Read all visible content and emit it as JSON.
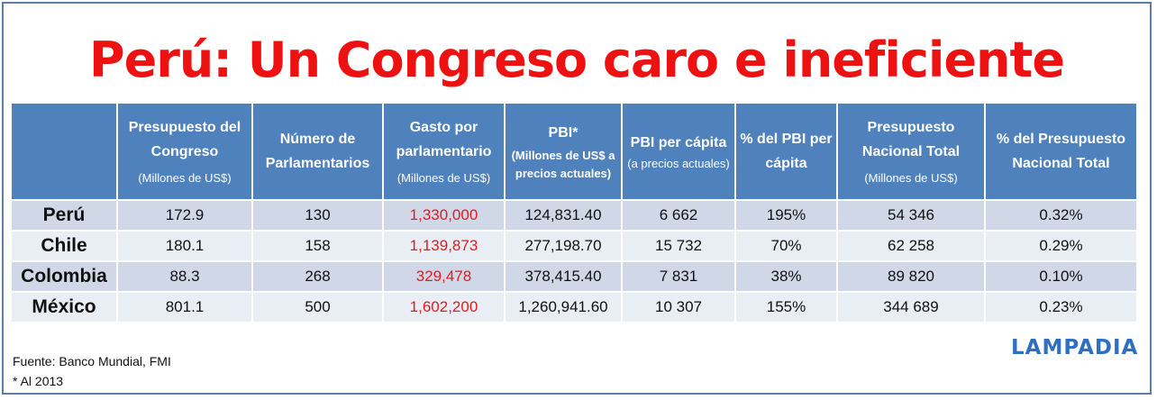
{
  "title": "Perú: Un Congreso caro e ineficiente",
  "table": {
    "headers": [
      {
        "main": "",
        "sub": ""
      },
      {
        "main": "Presupuesto del Congreso",
        "sub": "(Millones de US$)"
      },
      {
        "main": "Número de Parlamentarios",
        "sub": ""
      },
      {
        "main": "Gasto por parlamentario",
        "sub": "(Millones de US$)"
      },
      {
        "main": "PBI*",
        "sub": "(Millones de US$ a precios actuales)"
      },
      {
        "main": "PBI per cápita",
        "sub": "(a precios actuales)"
      },
      {
        "main": "% del PBI per cápita",
        "sub": ""
      },
      {
        "main": "Presupuesto Nacional Total",
        "sub": "(Millones de US$)"
      },
      {
        "main": "% del Presupuesto Nacional Total",
        "sub": ""
      }
    ],
    "rows": [
      {
        "country": "Perú",
        "presupuesto": "172.9",
        "numero": "130",
        "gasto": "1,330,000",
        "pbi": "124,831.40",
        "pbi_pc": "6 662",
        "pct_pbi": "195%",
        "pres_nacional": "54 346",
        "pct_pres": "0.32%"
      },
      {
        "country": "Chile",
        "presupuesto": "180.1",
        "numero": "158",
        "gasto": "1,139,873",
        "pbi": "277,198.70",
        "pbi_pc": "15 732",
        "pct_pbi": "70%",
        "pres_nacional": "62 258",
        "pct_pres": "0.29%"
      },
      {
        "country": "Colombia",
        "presupuesto": "88.3",
        "numero": "268",
        "gasto": "329,478",
        "pbi": "378,415.40",
        "pbi_pc": "7 831",
        "pct_pbi": "38%",
        "pres_nacional": "89 820",
        "pct_pres": "0.10%"
      },
      {
        "country": "México",
        "presupuesto": "801.1",
        "numero": "500",
        "gasto": "1,602,200",
        "pbi": "1,260,941.60",
        "pbi_pc": "10 307",
        "pct_pbi": "155%",
        "pres_nacional": "344 689",
        "pct_pres": "0.23%"
      }
    ]
  },
  "footer": {
    "source": "Fuente: Banco Mundial, FMI",
    "note": "* Al 2013",
    "logo": "LAMPADIA"
  },
  "colors": {
    "title": "#ee1111",
    "header_bg": "#4f81bd",
    "row_odd": "#d0d8e8",
    "row_even": "#e9edf4",
    "highlight": "#e8181b",
    "logo": "#2e6fc0"
  }
}
